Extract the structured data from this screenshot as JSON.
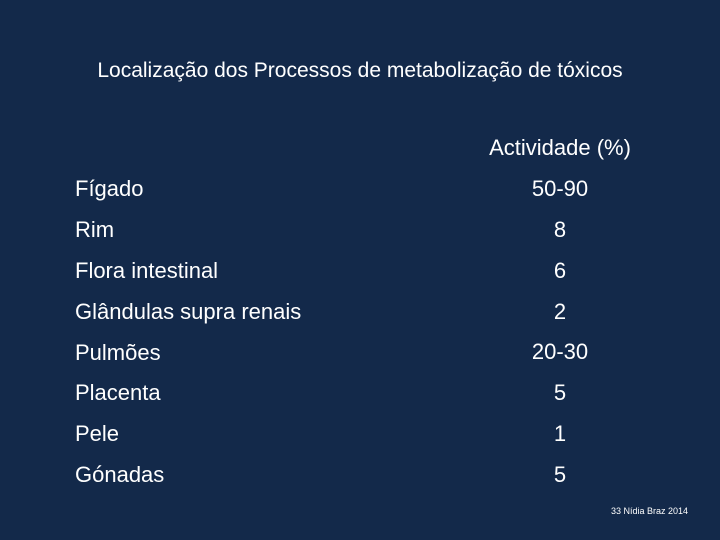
{
  "slide": {
    "title": "Localização dos Processos de metabolização de tóxicos",
    "activity_header": "Actividade (%)",
    "rows": [
      {
        "organ": "Fígado",
        "activity": "50-90"
      },
      {
        "organ": "Rim",
        "activity": "8"
      },
      {
        "organ": "Flora intestinal",
        "activity": "6"
      },
      {
        "organ": "Glândulas supra renais",
        "activity": "2"
      },
      {
        "organ": "Pulmões",
        "activity": "20-30"
      },
      {
        "organ": "Placenta",
        "activity": "5"
      },
      {
        "organ": "Pele",
        "activity": "1"
      },
      {
        "organ": "Gónadas",
        "activity": "5"
      }
    ],
    "footer": "33 Nídia Braz 2014"
  },
  "colors": {
    "background": "#13294a",
    "text": "#ffffff"
  }
}
